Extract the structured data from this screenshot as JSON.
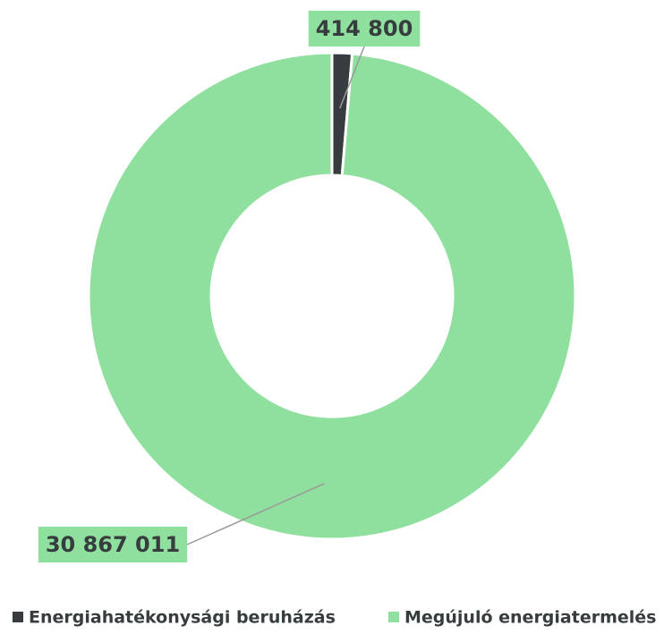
{
  "chart_data": {
    "type": "donut",
    "categories": [
      "Energiahatékonysági beruházás",
      "Megújuló energiatermelés"
    ],
    "values": [
      414800,
      30867011
    ],
    "value_labels": [
      "414 800",
      "30 867 011"
    ],
    "colors": [
      "#373d3f",
      "#8fe09e"
    ],
    "legend": "bottom"
  }
}
